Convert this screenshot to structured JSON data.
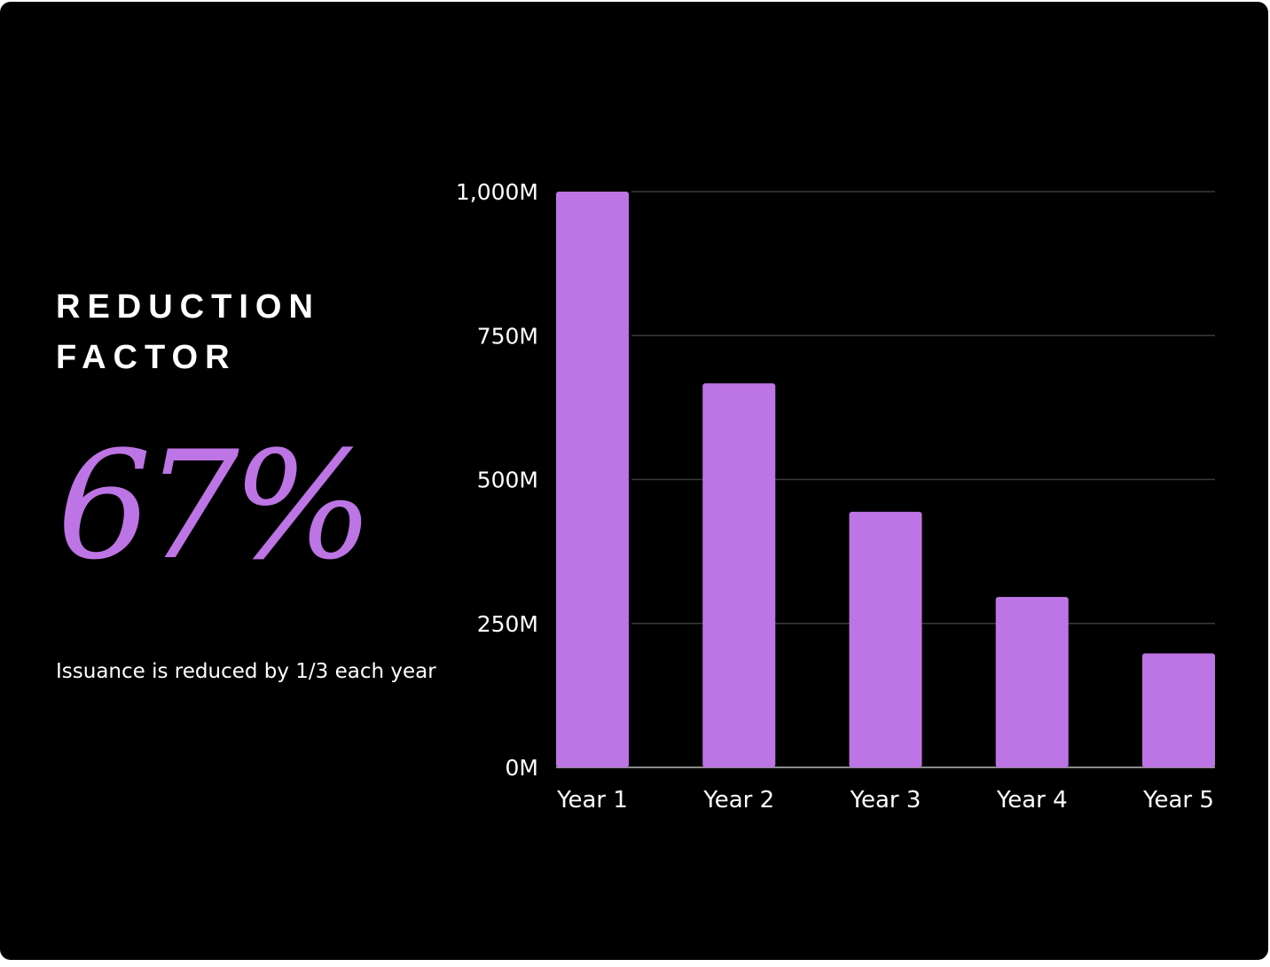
{
  "panel": {
    "heading_line1": "REDUCTION",
    "heading_line2": "FACTOR",
    "stat_value": "67%",
    "caption": "Issuance is reduced by 1/3 each year"
  },
  "colors": {
    "background": "#000000",
    "bar": "#bd74e4",
    "stat": "#bd74e4",
    "text": "#ffffff",
    "grid": "#3a3a3a"
  },
  "chart_data": {
    "type": "bar",
    "categories": [
      "Year 1",
      "Year 2",
      "Year 3",
      "Year 4",
      "Year 5"
    ],
    "values": [
      1000,
      667,
      444,
      296,
      198
    ],
    "unit": "M",
    "ylim": [
      0,
      1000
    ],
    "yticks": [
      0,
      250,
      500,
      750,
      1000
    ],
    "ytick_labels": [
      "0M",
      "250M",
      "500M",
      "750M",
      "1,000M"
    ],
    "grid": true,
    "legend": "none"
  }
}
